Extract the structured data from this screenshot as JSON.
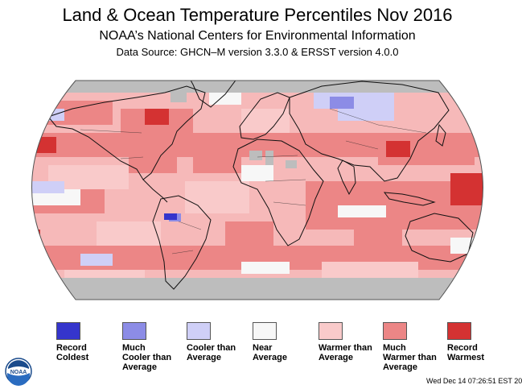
{
  "title": "Land & Ocean Temperature Percentiles Nov 2016",
  "subtitle": "NOAA’s National Centers for Environmental Information",
  "source": "Data Source: GHCN–M version 3.3.0 & ERSST version 4.0.0",
  "timestamp": "Wed Dec 14 07:26:51 EST 20",
  "logo_text": "NOAA",
  "colors": {
    "no_data": "#bdbdbd",
    "map_background": "#ffffff"
  },
  "legend": [
    {
      "key": "record_coldest",
      "label": "Record Coldest",
      "lines": [
        "Record",
        "Coldest"
      ],
      "color": "#3535cc"
    },
    {
      "key": "much_cooler",
      "label": "Much Cooler than Average",
      "lines": [
        "Much",
        "Cooler than",
        "Average"
      ],
      "color": "#8c8ce6"
    },
    {
      "key": "cooler",
      "label": "Cooler than Average",
      "lines": [
        "Cooler than",
        "Average"
      ],
      "color": "#cfcff7"
    },
    {
      "key": "near",
      "label": "Near Average",
      "lines": [
        "Near",
        "Average"
      ],
      "color": "#f7f7f7"
    },
    {
      "key": "warmer",
      "label": "Warmer than Average",
      "lines": [
        "Warmer than",
        "Average"
      ],
      "color": "#f9caca"
    },
    {
      "key": "much_warmer",
      "label": "Much Warmer than Average",
      "lines": [
        "Much",
        "Warmer than",
        "Average"
      ],
      "color": "#ec8686"
    },
    {
      "key": "record_warmest",
      "label": "Record Warmest",
      "lines": [
        "Record",
        "Warmest"
      ],
      "color": "#d43232"
    }
  ]
}
